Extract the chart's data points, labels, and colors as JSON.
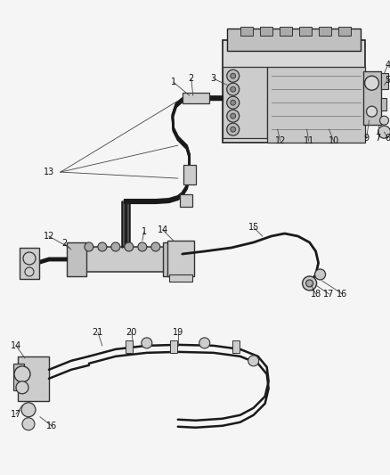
{
  "bg_color": "#f5f5f5",
  "line_color": "#1a1a1a",
  "label_color": "#111111",
  "fig_width": 4.38,
  "fig_height": 5.33,
  "dpi": 100
}
